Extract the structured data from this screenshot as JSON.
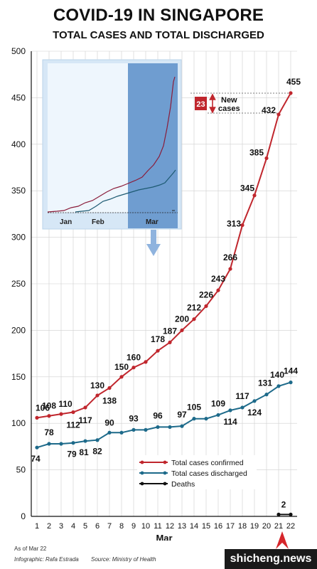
{
  "title": "COVID-19 IN SINGAPORE",
  "subtitle": "TOTAL CASES AND TOTAL DISCHARGED",
  "footer": {
    "date": "As of Mar 22",
    "credit": "Infographic: Rafa Estrada",
    "source": "Source: Ministry of Health"
  },
  "watermark": "shicheng.news",
  "colors": {
    "confirmed": "#c0262d",
    "discharged": "#1d6a8a",
    "deaths": "#111111",
    "grid": "#cfcfcf"
  },
  "annotation": {
    "value": "23",
    "label_line1": "New",
    "label_line2": "cases"
  },
  "inset": {
    "months": [
      "Jan",
      "Feb",
      "Mar"
    ]
  },
  "chart_data": {
    "type": "line",
    "xlabel": "Mar",
    "x": [
      1,
      2,
      3,
      4,
      5,
      6,
      7,
      8,
      9,
      10,
      11,
      12,
      13,
      14,
      15,
      16,
      17,
      18,
      19,
      20,
      21,
      22
    ],
    "ylim": [
      0,
      500
    ],
    "yticks": [
      0,
      50,
      100,
      150,
      200,
      250,
      300,
      350,
      400,
      450,
      500
    ],
    "grid": true,
    "legend_position": "lower-center",
    "series": [
      {
        "name": "Total cases confirmed",
        "color": "#c0262d",
        "values": [
          106,
          108,
          110,
          112,
          117,
          130,
          138,
          150,
          160,
          166,
          178,
          187,
          200,
          212,
          226,
          243,
          266,
          313,
          345,
          385,
          432,
          455
        ],
        "labels": [
          "106",
          "108",
          "110",
          "112",
          "117",
          "130",
          "138",
          "150",
          "160",
          "",
          "178",
          "187",
          "200",
          "212",
          "226",
          "243",
          "266",
          "313",
          "345",
          "385",
          "432",
          "455"
        ]
      },
      {
        "name": "Total cases discharged",
        "color": "#1d6a8a",
        "values": [
          74,
          78,
          78,
          79,
          81,
          82,
          90,
          90,
          93,
          93,
          96,
          96,
          97,
          105,
          105,
          109,
          114,
          117,
          124,
          131,
          140,
          144
        ],
        "labels": [
          "74",
          "78",
          "",
          "79",
          "81",
          "82",
          "90",
          "",
          "93",
          "",
          "96",
          "",
          "97",
          "105",
          "",
          "109",
          "114",
          "117",
          "124",
          "131",
          "140",
          "144"
        ]
      },
      {
        "name": "Deaths",
        "color": "#111111",
        "values": [
          null,
          null,
          null,
          null,
          null,
          null,
          null,
          null,
          null,
          null,
          null,
          null,
          null,
          null,
          null,
          null,
          null,
          null,
          null,
          null,
          2,
          2
        ],
        "labels": [
          "",
          "",
          "",
          "",
          "",
          "",
          "",
          "",
          "",
          "",
          "",
          "",
          "",
          "",
          "",
          "",
          "",
          "",
          "",
          "",
          "",
          "2"
        ]
      }
    ]
  }
}
